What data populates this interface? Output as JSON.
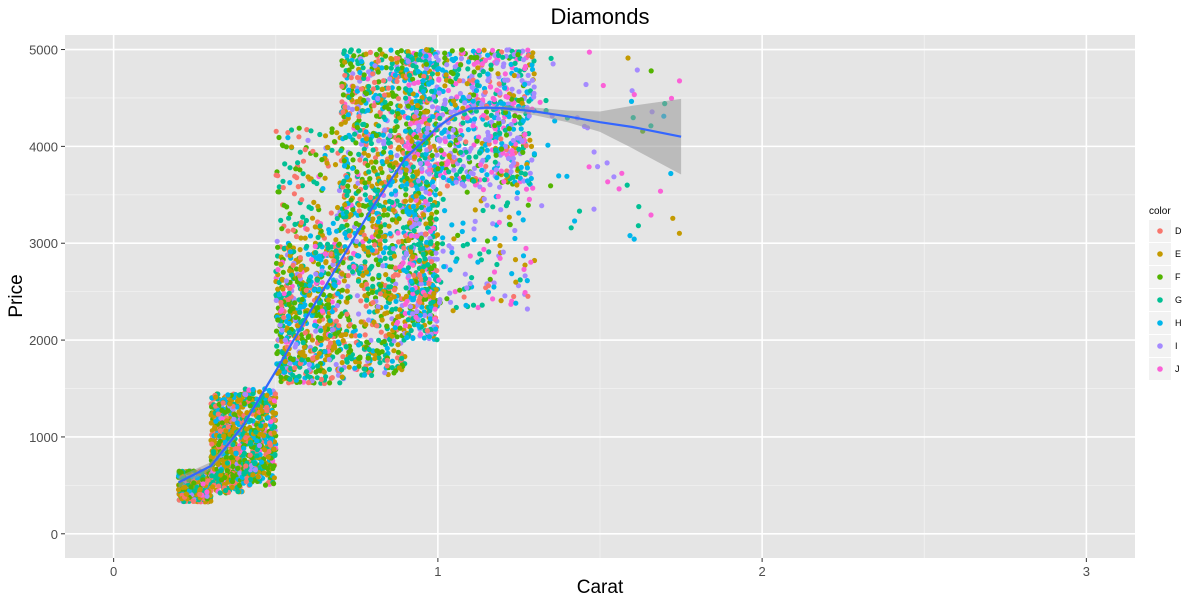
{
  "chart_data": {
    "type": "scatter",
    "title": "Diamonds",
    "xlabel": "Carat",
    "ylabel": "Price",
    "xlim": [
      -0.15,
      3.15
    ],
    "ylim": [
      -250,
      5150
    ],
    "x_ticks": [
      0,
      1,
      2,
      3
    ],
    "y_ticks": [
      0,
      1000,
      2000,
      3000,
      4000,
      5000
    ],
    "grid": true,
    "legend_title": "color",
    "legend_position": "right",
    "series": [
      {
        "name": "D",
        "color": "#F8766D"
      },
      {
        "name": "E",
        "color": "#C49A00"
      },
      {
        "name": "F",
        "color": "#53B400"
      },
      {
        "name": "G",
        "color": "#00C094"
      },
      {
        "name": "H",
        "color": "#00B6EB"
      },
      {
        "name": "I",
        "color": "#A58AFF"
      },
      {
        "name": "J",
        "color": "#FB61D7"
      }
    ],
    "clusters": [
      {
        "x": [
          0.2,
          0.3
        ],
        "y": [
          330,
          650
        ],
        "weights": [
          20,
          22,
          20,
          14,
          8,
          6,
          4
        ],
        "n": 420
      },
      {
        "x": [
          0.3,
          0.4
        ],
        "y": [
          420,
          1450
        ],
        "weights": [
          18,
          24,
          22,
          16,
          10,
          6,
          4
        ],
        "n": 520
      },
      {
        "x": [
          0.4,
          0.5
        ],
        "y": [
          500,
          1500
        ],
        "weights": [
          10,
          20,
          20,
          22,
          14,
          8,
          6
        ],
        "n": 420
      },
      {
        "x": [
          0.5,
          0.7
        ],
        "y": [
          1550,
          3000
        ],
        "weights": [
          15,
          20,
          22,
          20,
          12,
          7,
          4
        ],
        "n": 650
      },
      {
        "x": [
          0.5,
          0.7
        ],
        "y": [
          3000,
          4200
        ],
        "weights": [
          30,
          25,
          20,
          12,
          7,
          4,
          2
        ],
        "n": 130
      },
      {
        "x": [
          0.7,
          0.9
        ],
        "y": [
          1600,
          5000
        ],
        "weights": [
          14,
          22,
          20,
          20,
          12,
          8,
          4
        ],
        "n": 1000
      },
      {
        "x": [
          0.9,
          1.0
        ],
        "y": [
          2000,
          5000
        ],
        "weights": [
          8,
          14,
          14,
          20,
          18,
          14,
          12
        ],
        "n": 800
      },
      {
        "x": [
          1.0,
          1.3
        ],
        "y": [
          3600,
          5000
        ],
        "weights": [
          4,
          8,
          10,
          16,
          18,
          22,
          22
        ],
        "n": 650
      },
      {
        "x": [
          1.0,
          1.3
        ],
        "y": [
          2300,
          3600
        ],
        "weights": [
          6,
          10,
          12,
          18,
          18,
          18,
          18
        ],
        "n": 130
      },
      {
        "x": [
          1.3,
          1.75
        ],
        "y": [
          3000,
          5000
        ],
        "weights": [
          2,
          4,
          6,
          14,
          22,
          26,
          26
        ],
        "n": 55
      }
    ],
    "smooth_curve": {
      "name": "loess",
      "color": "#3366FF",
      "x": [
        0.2,
        0.3,
        0.4,
        0.5,
        0.6,
        0.7,
        0.8,
        0.9,
        1.0,
        1.05,
        1.1,
        1.15,
        1.2,
        1.3,
        1.4,
        1.5,
        1.6,
        1.75
      ],
      "y": [
        530,
        700,
        1120,
        1680,
        2260,
        2820,
        3380,
        3880,
        4200,
        4320,
        4390,
        4400,
        4395,
        4360,
        4310,
        4250,
        4200,
        4100
      ],
      "ci_lower": [
        470,
        660,
        1090,
        1660,
        2240,
        2800,
        3360,
        3860,
        4180,
        4300,
        4370,
        4380,
        4370,
        4320,
        4250,
        4150,
        3980,
        3710
      ],
      "ci_upper": [
        590,
        740,
        1150,
        1700,
        2280,
        2840,
        3400,
        3900,
        4220,
        4340,
        4410,
        4420,
        4420,
        4400,
        4370,
        4360,
        4420,
        4490
      ]
    }
  }
}
